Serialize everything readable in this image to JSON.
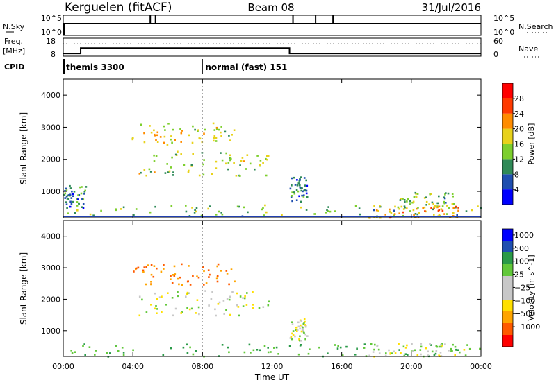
{
  "header": {
    "station": "Kerguelen (fitACF)",
    "beam": "Beam 08",
    "date": "31/Jul/2016"
  },
  "params": {
    "nsky_label": "N.Sky",
    "nsearch_label": "N.Search",
    "freq_label": "Freq.",
    "freq_unit": "[MHz]",
    "nave_label": "Nave",
    "cpid_label": "CPID",
    "nsky_ticks": [
      "10^5",
      "10^0"
    ],
    "nsearch_ticks": [
      "10^5",
      "10^0"
    ],
    "freq_ticks": [
      "18",
      "8"
    ],
    "nave_ticks": [
      "60",
      "0"
    ],
    "freq_profile": [
      [
        0,
        9.5
      ],
      [
        1,
        12.5
      ],
      [
        13,
        9.5
      ],
      [
        24,
        9.5
      ]
    ],
    "nave_level": 41,
    "nsky_spikes": [
      5.0,
      5.3,
      14.5,
      15.5,
      13.2
    ],
    "cpid": [
      {
        "start": 0,
        "text": "themis 3300"
      },
      {
        "start": 8,
        "text": "normal (fast) 151"
      }
    ]
  },
  "colors": {
    "power": [
      "#0000ff",
      "#1f4fb0",
      "#2f8a57",
      "#7dcf2d",
      "#e8d21a",
      "#ff8c00",
      "#ff3a00",
      "#ff0000"
    ],
    "velocity": [
      "#ff0000",
      "#ff5a00",
      "#ffa500",
      "#ffe000",
      "#c8c8c8",
      "#c8c8c8",
      "#62c83a",
      "#2a9a48",
      "#1f4fb0",
      "#0000ff"
    ]
  },
  "chart_data": [
    {
      "type": "heatmap",
      "title": "",
      "xlabel": "",
      "ylabel": "Slant Range [km]",
      "xlim": [
        0,
        24
      ],
      "ylim": [
        180,
        4500
      ],
      "x_ticks": [],
      "y_ticks": [
        1000,
        2000,
        3000,
        4000
      ],
      "colorbar": {
        "label": "Power [dB]",
        "ticks": [
          "4",
          "8",
          "12",
          "16",
          "20",
          "24",
          "28"
        ],
        "range": [
          0,
          30
        ]
      },
      "regions": [
        {
          "t0": 3.9,
          "t1": 9.8,
          "r0": 2480,
          "r1": 3150,
          "value": 16
        },
        {
          "t0": 4.3,
          "t1": 11.8,
          "r0": 1500,
          "r1": 2300,
          "value": 14
        },
        {
          "t0": 0.0,
          "t1": 24.0,
          "r0": 230,
          "r1": 600,
          "value": 12
        },
        {
          "t0": 17.5,
          "t1": 23.0,
          "r0": 200,
          "r1": 620,
          "value": 20
        },
        {
          "t0": 0.0,
          "t1": 1.3,
          "r0": 500,
          "r1": 1200,
          "value": 8
        },
        {
          "t0": 13.0,
          "t1": 14.0,
          "r0": 700,
          "r1": 1500,
          "value": 8
        },
        {
          "t0": 19.3,
          "t1": 22.5,
          "r0": 500,
          "r1": 1000,
          "value": 12
        }
      ]
    },
    {
      "type": "heatmap",
      "title": "",
      "xlabel": "Time UT",
      "ylabel": "Slant Range [km]",
      "xlim": [
        0,
        24
      ],
      "ylim": [
        180,
        4500
      ],
      "x_ticks": [
        "00:00",
        "04:00",
        "08:00",
        "12:00",
        "16:00",
        "20:00",
        "00:00"
      ],
      "y_ticks": [
        1000,
        2000,
        3000,
        4000
      ],
      "colorbar": {
        "label": "Velocity [m s^-1]",
        "ticks": [
          "1000",
          "500",
          "100",
          "25",
          "-25",
          "-100",
          "-500",
          "-1000"
        ],
        "range": [
          -1000,
          1000
        ]
      },
      "regions": [
        {
          "t0": 3.9,
          "t1": 9.8,
          "r0": 2480,
          "r1": 3150,
          "value": -500
        },
        {
          "t0": 4.3,
          "t1": 11.8,
          "r0": 1500,
          "r1": 2300,
          "value": 0
        },
        {
          "t0": 0.0,
          "t1": 24.0,
          "r0": 200,
          "r1": 600,
          "value": 100
        },
        {
          "t0": 13.0,
          "t1": 14.0,
          "r0": 700,
          "r1": 1400,
          "value": 0
        },
        {
          "t0": 17.5,
          "t1": 23.0,
          "r0": 200,
          "r1": 620,
          "value": 0
        }
      ]
    }
  ]
}
